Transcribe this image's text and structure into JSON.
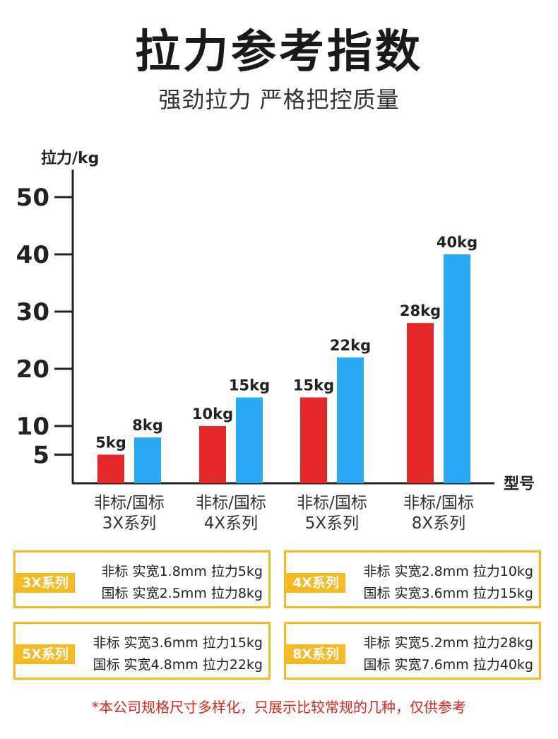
{
  "header": {
    "title": "拉力参考指数",
    "subtitle": "强劲拉力 严格把控质量"
  },
  "colors": {
    "non_standard": "#e5282a",
    "national_standard": "#29a8f5",
    "accent": "#f5b922"
  },
  "chart_data": {
    "type": "bar",
    "ylabel": "拉力/kg",
    "xlabel": "型号",
    "yticks": [
      5,
      10,
      20,
      30,
      40,
      50
    ],
    "ylim": [
      0,
      50
    ],
    "grid": false,
    "categories": [
      [
        "非标/国标",
        "3X系列"
      ],
      [
        "非标/国标",
        "4X系列"
      ],
      [
        "非标/国标",
        "5X系列"
      ],
      [
        "非标/国标",
        "8X系列"
      ]
    ],
    "series": [
      {
        "values": [
          5,
          10,
          15,
          28
        ],
        "labels": [
          "5kg",
          "10kg",
          "15kg",
          "28kg"
        ],
        "color": "#e5282a"
      },
      {
        "values": [
          8,
          15,
          22,
          40
        ],
        "labels": [
          "8kg",
          "15kg",
          "22kg",
          "40kg"
        ],
        "color": "#29a8f5"
      }
    ]
  },
  "specs": [
    {
      "tag": "3X系列",
      "line1": "非标  实宽1.8mm 拉力5kg",
      "line2": "国标  实宽2.5mm 拉力8kg"
    },
    {
      "tag": "4X系列",
      "line1": "非标  实宽2.8mm 拉力10kg",
      "line2": "国标  实宽3.6mm 拉力15kg"
    },
    {
      "tag": "5X系列",
      "line1": "非标  实宽3.6mm 拉力15kg",
      "line2": "国标  实宽4.8mm 拉力22kg"
    },
    {
      "tag": "8X系列",
      "line1": "非标  实宽5.2mm 拉力28kg",
      "line2": "国标  实宽7.6mm 拉力40kg"
    }
  ],
  "footnote": "*本公司规格尺寸多样化，只展示比较常规的几种，仅供参考"
}
